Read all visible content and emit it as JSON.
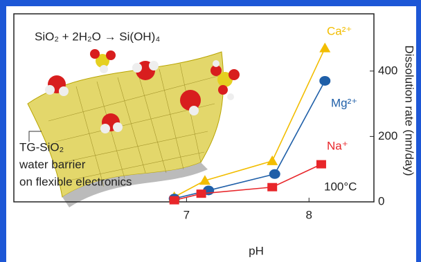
{
  "chart_data": {
    "type": "line",
    "equation": "SiO₂ + 2H₂O → Si(OH)₄",
    "annotation_lines": [
      "TG-SiO₂",
      "water barrier",
      "on flexible electronics"
    ],
    "temperature": "100°C",
    "x_label": "pH",
    "y_label": "Dissolution rate (nm/day)",
    "xlim": [
      5.59,
      8.53
    ],
    "xticks": [
      7,
      8
    ],
    "ylim": [
      0,
      575
    ],
    "yticks": [
      0,
      200,
      400
    ],
    "series": [
      {
        "name": "Ca²⁺",
        "color": "#f2bd00",
        "marker": "triangle",
        "x": [
          6.9,
          7.15,
          7.7,
          8.13
        ],
        "values": [
          15,
          65,
          125,
          470
        ]
      },
      {
        "name": "Mg²⁺",
        "color": "#1f5fa8",
        "marker": "ellipse",
        "x": [
          6.9,
          7.18,
          7.72,
          8.13
        ],
        "values": [
          10,
          35,
          85,
          370
        ]
      },
      {
        "name": "Na⁺",
        "color": "#e8262a",
        "marker": "square",
        "x": [
          6.9,
          7.12,
          7.7,
          8.1
        ],
        "values": [
          5,
          25,
          45,
          115
        ]
      }
    ]
  }
}
